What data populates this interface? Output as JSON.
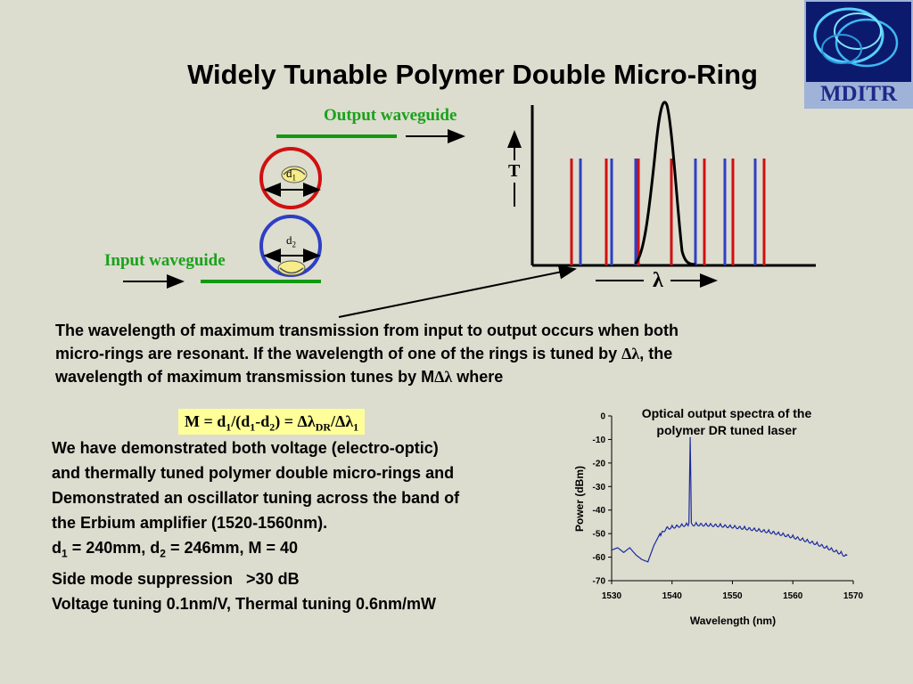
{
  "title": "Widely Tunable Polymer Double Micro-Ring",
  "logo": {
    "text": "MDITR"
  },
  "diagram": {
    "output_label": "Output waveguide",
    "input_label": "Input waveguide",
    "d1": "d",
    "d1_sub": "1",
    "d2": "d",
    "d2_sub": "2",
    "t_axis": "T",
    "lambda_axis": "λ",
    "ring1_color": "#d01010",
    "ring2_color": "#2d3fc4",
    "waveguide_color": "#119911"
  },
  "paragraph": {
    "line1": "The wavelength of maximum transmission from input to output occurs when both",
    "line2_a": "micro-rings are resonant. If the wavelength of one of the rings is tuned by ",
    "line2_b": "Δλ",
    "line2_c": ", the",
    "line3_a": "wavelength of maximum transmission tunes by M",
    "line3_b": "Δλ",
    "line3_c": " where"
  },
  "formula": {
    "a": "M = d",
    "a_sub": "1",
    "b": "/(d",
    "b_sub": "1",
    "c": "-d",
    "c_sub": "2",
    "d": ") = Δλ",
    "d_sub": "DR",
    "e": "/Δλ",
    "e_sub": "1"
  },
  "list": {
    "line1": "We have demonstrated both voltage (electro-optic)",
    "line2": "and thermally tuned polymer double micro-rings and",
    "line3": "Demonstrated an oscillator tuning across the band of",
    "line4": "the Erbium amplifier (1520-1560nm).",
    "line5_a": "d",
    "line5_a_sub": "1",
    "line5_b": " = 240mm, d",
    "line5_b_sub": "2",
    "line5_c": " = 246mm, M = 40",
    "line6": "Side mode suppression   >30 dB",
    "line7": "Voltage tuning 0.1nm/V, Thermal tuning 0.6nm/mW"
  },
  "chart_data": {
    "type": "line",
    "title_line1": "Optical output spectra of the",
    "title_line2": "polymer DR tuned laser",
    "xlabel": "Wavelength (nm)",
    "ylabel": "Power (dBm)",
    "xlim": [
      1530,
      1570
    ],
    "ylim": [
      -70,
      0
    ],
    "xticks": [
      1530,
      1540,
      1550,
      1560,
      1570
    ],
    "yticks": [
      0,
      -10,
      -20,
      -30,
      -40,
      -50,
      -60,
      -70
    ],
    "line_color": "#1a2a9c",
    "series": [
      {
        "x": [
          1530,
          1531,
          1532,
          1533,
          1534,
          1535,
          1536,
          1537,
          1538,
          1539,
          1540,
          1541,
          1542,
          1542.8,
          1543.0,
          1543.2,
          1544,
          1546,
          1548,
          1550,
          1552,
          1554,
          1556,
          1558,
          1560,
          1562,
          1564,
          1566,
          1568,
          1569
        ],
        "y": [
          -57,
          -56,
          -58,
          -56,
          -59,
          -61,
          -62,
          -55,
          -50,
          -47,
          -46.5,
          -46,
          -45.6,
          -45.4,
          -9,
          -45.4,
          -45.3,
          -45.5,
          -45.8,
          -46.3,
          -46.9,
          -47.6,
          -48.4,
          -49.4,
          -50.6,
          -52.0,
          -53.6,
          -55.5,
          -57.6,
          -59
        ]
      }
    ]
  }
}
